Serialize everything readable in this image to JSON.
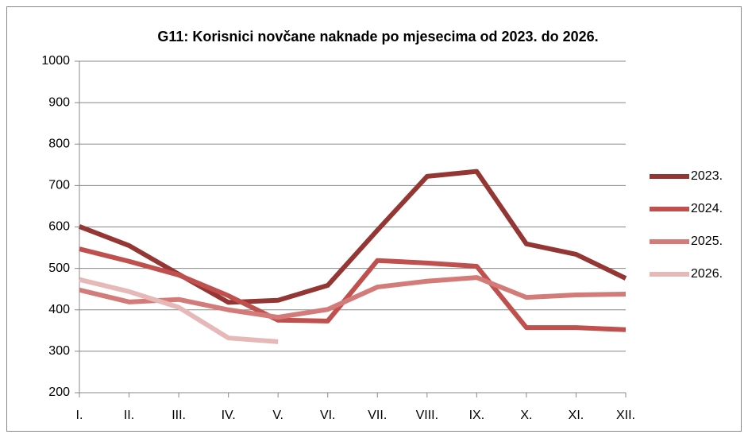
{
  "chart_data": {
    "type": "line",
    "title": "G11: Korisnici novčane naknade po mjesecima od 2023. do 2026.",
    "categories": [
      "I.",
      "II.",
      "III.",
      "IV.",
      "V.",
      "VI.",
      "VII.",
      "VIII.",
      "IX.",
      "X.",
      "XI.",
      "XII."
    ],
    "series": [
      {
        "name": "2023.",
        "color": "#943634",
        "values": [
          601,
          555,
          486,
          418,
          423,
          459,
          592,
          722,
          734,
          559,
          534,
          476
        ]
      },
      {
        "name": "2024.",
        "color": "#c0504d",
        "values": [
          547,
          517,
          484,
          434,
          375,
          373,
          519,
          513,
          505,
          357,
          357,
          352
        ]
      },
      {
        "name": "2025.",
        "color": "#d27b79",
        "values": [
          448,
          419,
          425,
          400,
          382,
          401,
          455,
          469,
          478,
          430,
          436,
          438
        ]
      },
      {
        "name": "2026.",
        "color": "#e6b9b8",
        "values": [
          473,
          444,
          406,
          332,
          323,
          null,
          null,
          null,
          null,
          null,
          null,
          null
        ]
      }
    ],
    "ylim": [
      200,
      1000
    ],
    "yticks": [
      200,
      300,
      400,
      500,
      600,
      700,
      800,
      900,
      1000
    ],
    "grid": true,
    "legend": "right"
  }
}
